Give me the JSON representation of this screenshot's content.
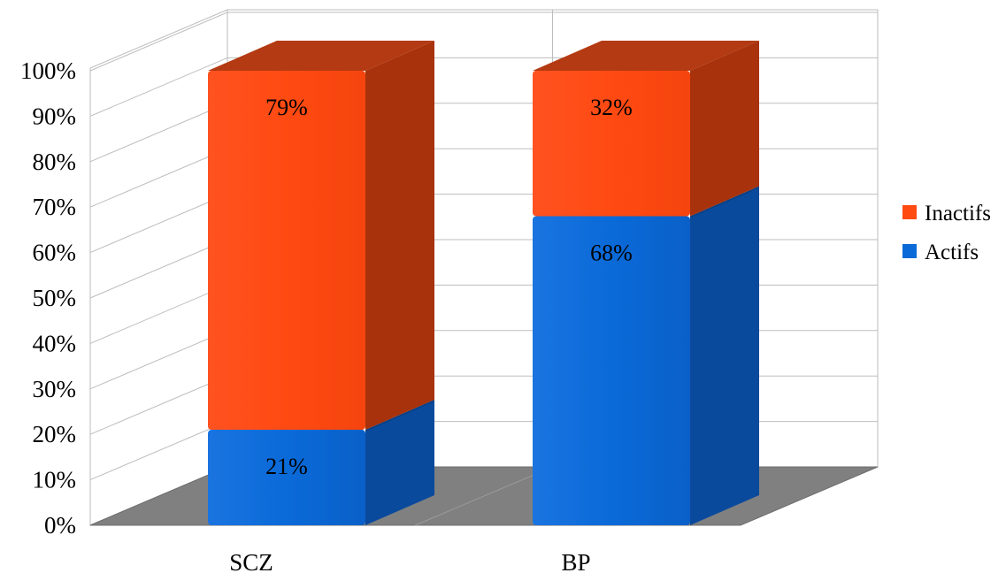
{
  "chart_data": {
    "type": "bar",
    "stacked": true,
    "stack_percent": true,
    "three_d": true,
    "categories": [
      "SCZ",
      "BP"
    ],
    "series": [
      {
        "name": "Actifs",
        "values": [
          21,
          68
        ],
        "labels": [
          "21%",
          "68%"
        ],
        "color": "#0a6ad8"
      },
      {
        "name": "Inactifs",
        "values": [
          79,
          32
        ],
        "labels": [
          "79%",
          "32%"
        ],
        "color": "#ff4a12"
      }
    ],
    "ylim": [
      0,
      100
    ],
    "yticks": [
      "0%",
      "10%",
      "20%",
      "30%",
      "40%",
      "50%",
      "60%",
      "70%",
      "80%",
      "90%",
      "100%"
    ],
    "grid": true,
    "legend_position": "right",
    "floor_color": "#808080"
  }
}
